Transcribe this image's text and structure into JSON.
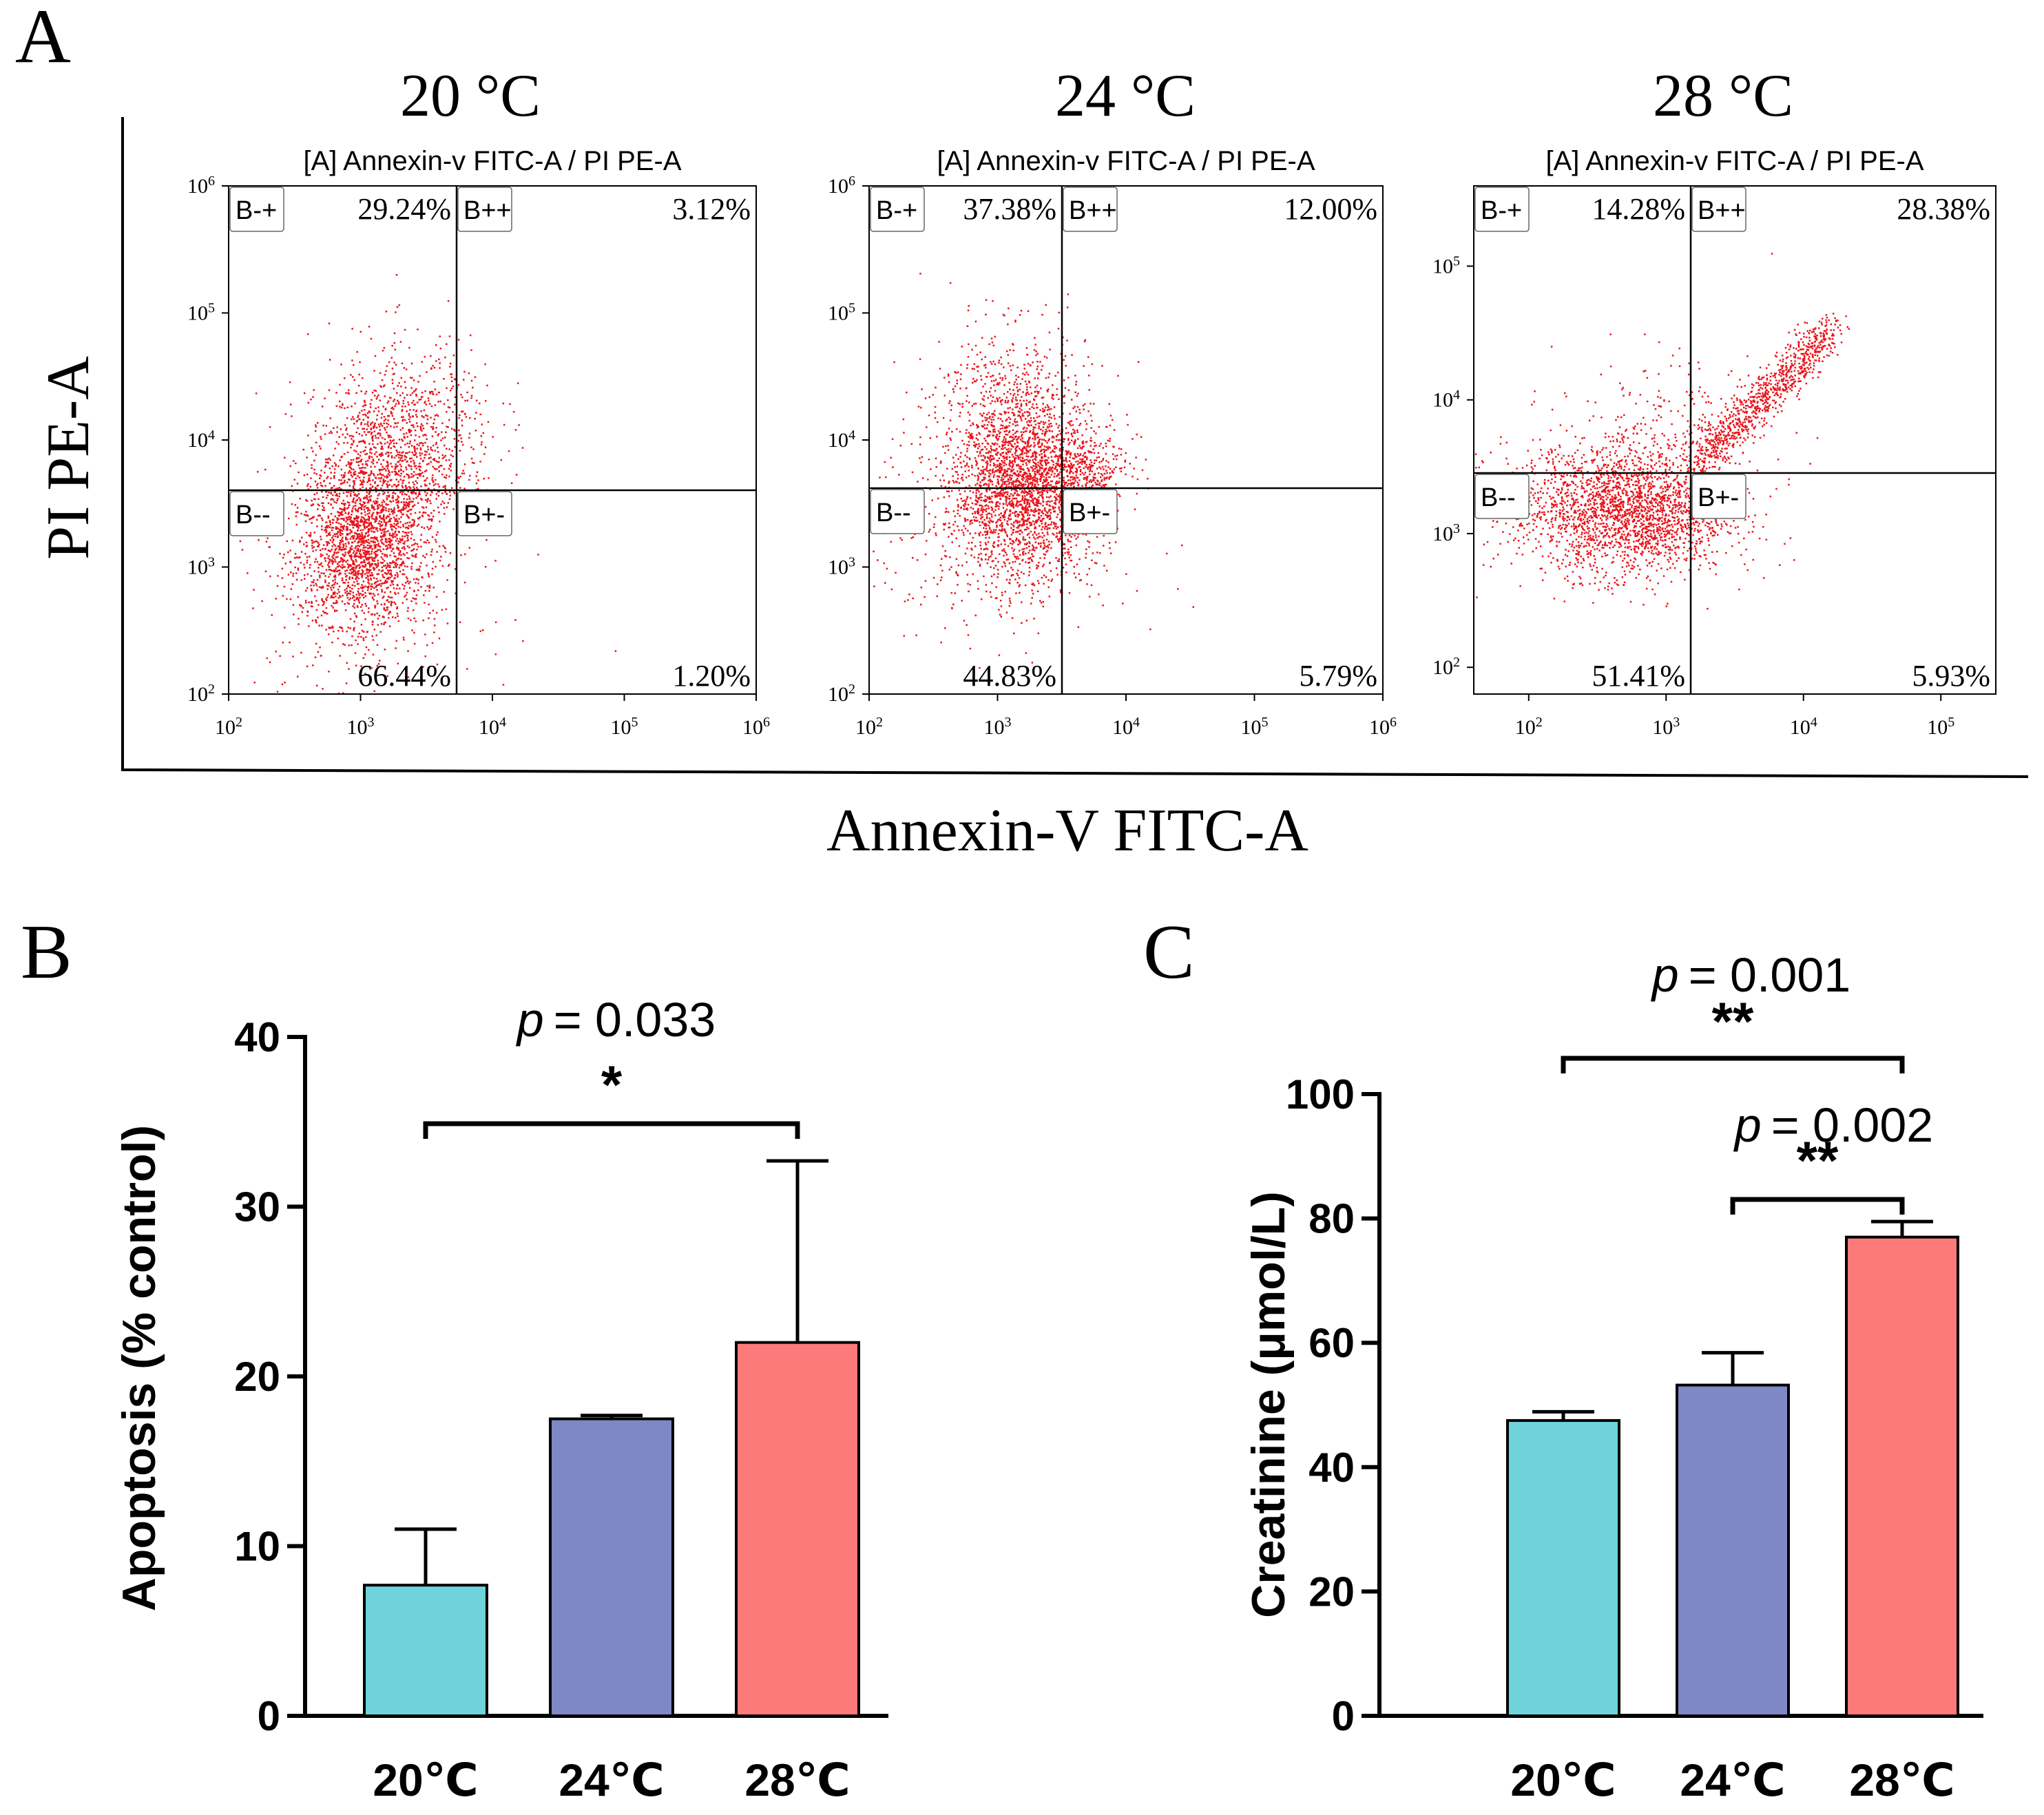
{
  "panels": {
    "a": "A",
    "b": "B",
    "c": "C"
  },
  "colors": {
    "dot": "#e8141b",
    "teal": "#6fd3dc",
    "purple": "#7f87c4",
    "salmon": "#fd7a7b"
  },
  "flow": {
    "y_axis_label": "PI PE-A",
    "x_axis_label": "Annexin-V FITC-A",
    "plot_title": "[A] Annexin-v FITC-A / PI PE-A",
    "quadrant_labels": [
      "B-+",
      "B++",
      "B--",
      "B+-"
    ],
    "plots": [
      {
        "temperature": "20 °C",
        "x_ticks": [
          "10",
          "10",
          "10",
          "10",
          "10"
        ],
        "x_exps": [
          "2",
          "3",
          "4",
          "5",
          "6"
        ],
        "y_ticks": [
          "10",
          "10",
          "10",
          "10",
          "10"
        ],
        "y_exps": [
          "2",
          "3",
          "4",
          "5",
          "6"
        ],
        "percentages": {
          "upper_left": "29.24%",
          "upper_right": "3.12%",
          "lower_left": "66.44%",
          "lower_right": "1.20%"
        }
      },
      {
        "temperature": "24 °C",
        "x_ticks": [
          "10",
          "10",
          "10",
          "10",
          "10"
        ],
        "x_exps": [
          "2",
          "3",
          "4",
          "5",
          "6"
        ],
        "y_ticks": [
          "10",
          "10",
          "10",
          "10",
          "10"
        ],
        "y_exps": [
          "2",
          "3",
          "4",
          "5",
          "6"
        ],
        "percentages": {
          "upper_left": "37.38%",
          "upper_right": "12.00%",
          "lower_left": "44.83%",
          "lower_right": "5.79%"
        }
      },
      {
        "temperature": "28 °C",
        "x_ticks": [
          "10",
          "10",
          "10",
          "10"
        ],
        "x_exps": [
          "2",
          "3",
          "4",
          "5"
        ],
        "y_ticks": [
          "10",
          "10",
          "10",
          "10"
        ],
        "y_exps": [
          "2",
          "3",
          "4",
          "5"
        ],
        "percentages": {
          "upper_left": "14.28%",
          "upper_right": "28.38%",
          "lower_left": "51.41%",
          "lower_right": "5.93%"
        }
      }
    ]
  },
  "chart_data": [
    {
      "type": "bar",
      "panel": "B",
      "ylabel": "Apoptosis (% control)",
      "categories": [
        "20℃",
        "24℃",
        "28℃"
      ],
      "values": [
        7.7,
        17.5,
        22.0
      ],
      "errors": [
        3.3,
        0.2,
        10.7
      ],
      "ylim": [
        0,
        40
      ],
      "yticks": [
        0,
        10,
        20,
        30,
        40
      ],
      "ytick_labels": [
        "0",
        "10",
        "20",
        "30",
        "40"
      ],
      "comparisons": [
        {
          "from": 0,
          "to": 2,
          "p_symbol": "p",
          "p_value": "= 0.033",
          "stars": "*"
        }
      ]
    },
    {
      "type": "bar",
      "panel": "C",
      "ylabel": "Creatinine (μmol/L)",
      "categories": [
        "20℃",
        "24℃",
        "28℃"
      ],
      "values": [
        47.5,
        53.2,
        77.0
      ],
      "errors": [
        1.4,
        5.2,
        2.5
      ],
      "ylim": [
        0,
        100
      ],
      "yticks": [
        0,
        20,
        40,
        60,
        80,
        100
      ],
      "ytick_labels": [
        "0",
        "20",
        "40",
        "60",
        "80",
        "100"
      ],
      "comparisons": [
        {
          "from": 0,
          "to": 2,
          "p_symbol": "p",
          "p_value": "= 0.001",
          "stars": "**"
        },
        {
          "from": 1,
          "to": 2,
          "p_symbol": "p",
          "p_value": "= 0.002",
          "stars": "**"
        }
      ]
    }
  ]
}
